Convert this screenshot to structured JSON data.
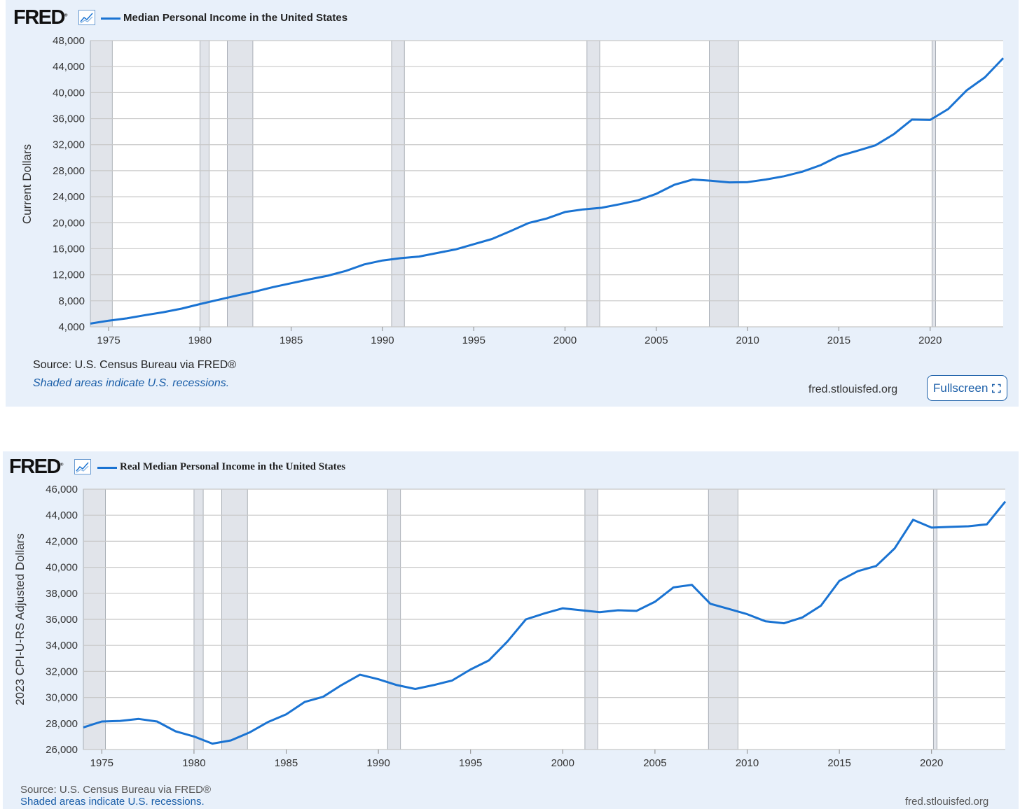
{
  "panels": [
    {
      "logo": "FRED",
      "logo_mark": "®",
      "series_title": "Median Personal Income in the United States",
      "source": "Source: U.S. Census Bureau via FRED®",
      "recession_note": "Shaded areas indicate U.S. recessions.",
      "site": "fred.stlouisfed.org",
      "fullscreen_label": "Fullscreen"
    },
    {
      "logo": "FRED",
      "logo_mark": "®",
      "series_title": "Real Median Personal Income in the United States",
      "source": "Source: U.S. Census Bureau via FRED®",
      "recession_note": "Shaded areas indicate U.S. recessions.",
      "site": "fred.stlouisfed.org"
    }
  ],
  "colors": {
    "line": "#1a73d2",
    "recession": "#e1e4ea",
    "grid": "#c8c8c8",
    "panel_bg": "#e8f0fa"
  },
  "chart_data": [
    {
      "type": "line",
      "title": "Median Personal Income in the United States",
      "xlabel": "",
      "ylabel": "Current Dollars",
      "xlim": [
        1974,
        2024
      ],
      "ylim": [
        4000,
        48000
      ],
      "yticks": [
        4000,
        8000,
        12000,
        16000,
        20000,
        24000,
        28000,
        32000,
        36000,
        40000,
        44000,
        48000
      ],
      "ytick_labels": [
        "4,000",
        "8,000",
        "12,000",
        "16,000",
        "20,000",
        "24,000",
        "28,000",
        "32,000",
        "36,000",
        "40,000",
        "44,000",
        "48,000"
      ],
      "xticks": [
        1975,
        1980,
        1985,
        1990,
        1995,
        2000,
        2005,
        2010,
        2015,
        2020
      ],
      "xtick_labels": [
        "1975",
        "1980",
        "1985",
        "1990",
        "1995",
        "2000",
        "2005",
        "2010",
        "2015",
        "2020"
      ],
      "recessions": [
        [
          1974,
          1975.2
        ],
        [
          1980.0,
          1980.5
        ],
        [
          1981.5,
          1982.9
        ],
        [
          1990.5,
          1991.2
        ],
        [
          2001.2,
          2001.9
        ],
        [
          2007.9,
          2009.5
        ],
        [
          2020.1,
          2020.3
        ]
      ],
      "series": [
        {
          "name": "Median Personal Income in the United States",
          "x": [
            1974,
            1975,
            1976,
            1977,
            1978,
            1979,
            1980,
            1981,
            1982,
            1983,
            1984,
            1985,
            1986,
            1987,
            1988,
            1989,
            1990,
            1991,
            1992,
            1993,
            1994,
            1995,
            1996,
            1997,
            1998,
            1999,
            2000,
            2001,
            2002,
            2003,
            2004,
            2005,
            2006,
            2007,
            2008,
            2009,
            2010,
            2011,
            2012,
            2013,
            2014,
            2015,
            2016,
            2017,
            2018,
            2019,
            2020,
            2021,
            2022,
            2023,
            2024
          ],
          "values": [
            4500,
            4950,
            5300,
            5800,
            6250,
            6800,
            7500,
            8150,
            8800,
            9400,
            10100,
            10700,
            11300,
            11850,
            12600,
            13600,
            14200,
            14550,
            14800,
            15350,
            15900,
            16700,
            17500,
            18700,
            19950,
            20650,
            21650,
            22050,
            22300,
            22850,
            23450,
            24450,
            25850,
            26650,
            26450,
            26200,
            26250,
            26650,
            27150,
            27850,
            28850,
            30250,
            31050,
            31900,
            33600,
            35850,
            35800,
            37500,
            40350,
            42350,
            45300
          ]
        }
      ]
    },
    {
      "type": "line",
      "title": "Real Median Personal Income in the United States",
      "xlabel": "",
      "ylabel": "2023 CPI-U-RS Adjusted Dollars",
      "xlim": [
        1974,
        2024
      ],
      "ylim": [
        26000,
        46000
      ],
      "yticks": [
        26000,
        28000,
        30000,
        32000,
        34000,
        36000,
        38000,
        40000,
        42000,
        44000,
        46000
      ],
      "ytick_labels": [
        "26,000",
        "28,000",
        "30,000",
        "32,000",
        "34,000",
        "36,000",
        "38,000",
        "40,000",
        "42,000",
        "44,000",
        "46,000"
      ],
      "xticks": [
        1975,
        1980,
        1985,
        1990,
        1995,
        2000,
        2005,
        2010,
        2015,
        2020
      ],
      "xtick_labels": [
        "1975",
        "1980",
        "1985",
        "1990",
        "1995",
        "2000",
        "2005",
        "2010",
        "2015",
        "2020"
      ],
      "recessions": [
        [
          1974,
          1975.2
        ],
        [
          1980.0,
          1980.5
        ],
        [
          1981.5,
          1982.9
        ],
        [
          1990.5,
          1991.2
        ],
        [
          2001.2,
          2001.9
        ],
        [
          2007.9,
          2009.5
        ],
        [
          2020.1,
          2020.3
        ]
      ],
      "series": [
        {
          "name": "Real Median Personal Income in the United States",
          "x": [
            1974,
            1975,
            1976,
            1977,
            1978,
            1979,
            1980,
            1981,
            1982,
            1983,
            1984,
            1985,
            1986,
            1987,
            1988,
            1989,
            1990,
            1991,
            1992,
            1993,
            1994,
            1995,
            1996,
            1997,
            1998,
            1999,
            2000,
            2001,
            2002,
            2003,
            2004,
            2005,
            2006,
            2007,
            2008,
            2009,
            2010,
            2011,
            2012,
            2013,
            2014,
            2015,
            2016,
            2017,
            2018,
            2019,
            2020,
            2021,
            2022,
            2023,
            2024
          ],
          "values": [
            27700,
            28150,
            28200,
            28350,
            28150,
            27400,
            27000,
            26450,
            26700,
            27300,
            28100,
            28700,
            29650,
            30050,
            30950,
            31750,
            31400,
            30950,
            30650,
            30950,
            31300,
            32150,
            32850,
            34300,
            36000,
            36450,
            36850,
            36700,
            36550,
            36700,
            36650,
            37350,
            38450,
            38650,
            37200,
            36800,
            36400,
            35850,
            35700,
            36150,
            37050,
            38950,
            39700,
            40100,
            41450,
            43650,
            43050,
            43100,
            43150,
            43300,
            45050
          ]
        }
      ]
    }
  ]
}
